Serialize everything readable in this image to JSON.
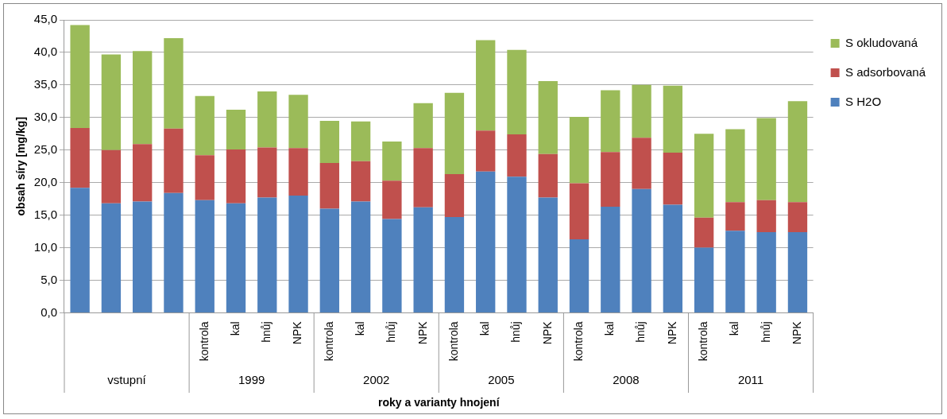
{
  "chart_data": {
    "type": "bar",
    "stacked": true,
    "ylabel": "obsah síry [mg/kg]",
    "xlabel": "roky a varianty hnojení",
    "categories": [
      null,
      null,
      null,
      null,
      "kontrola",
      "kal",
      "hnůj",
      "NPK",
      "kontrola",
      "kal",
      "hnůj",
      "NPK",
      "kontrola",
      "kal",
      "hnůj",
      "NPK",
      "kontrola",
      "kal",
      "hnůj",
      "NPK",
      "kontrola",
      "kal",
      "hnůj",
      "NPK"
    ],
    "series": [
      {
        "name": "S H2O",
        "color": "#4f81bd",
        "values": [
          19.2,
          16.8,
          17.1,
          18.4,
          17.3,
          16.8,
          17.7,
          18.0,
          16.0,
          17.1,
          14.4,
          16.2,
          14.7,
          21.7,
          20.9,
          17.7,
          11.3,
          16.3,
          19.0,
          16.6,
          10.0,
          12.6,
          12.4,
          12.4
        ]
      },
      {
        "name": "S adsorbovaná",
        "color": "#c0504d",
        "values": [
          9.2,
          8.2,
          8.8,
          9.9,
          6.9,
          8.3,
          7.7,
          7.3,
          7.0,
          6.2,
          5.9,
          9.1,
          6.6,
          6.3,
          6.5,
          6.7,
          8.6,
          8.4,
          7.9,
          8.0,
          4.6,
          4.4,
          4.9,
          4.6
        ]
      },
      {
        "name": "S okludovaná",
        "color": "#9bbb59",
        "values": [
          15.8,
          14.7,
          14.3,
          13.9,
          9.1,
          6.1,
          8.6,
          8.2,
          6.5,
          6.1,
          6.0,
          6.9,
          12.5,
          13.9,
          13.0,
          11.2,
          10.2,
          9.5,
          8.1,
          10.3,
          12.9,
          11.2,
          12.6,
          15.5
        ]
      }
    ],
    "ylim": [
      0,
      45
    ],
    "yticks": [
      {
        "value": 0,
        "label": "0,0"
      },
      {
        "value": 5,
        "label": "5,0"
      },
      {
        "value": 10,
        "label": "10,0"
      },
      {
        "value": 15,
        "label": "15,0"
      },
      {
        "value": 20,
        "label": "20,0"
      },
      {
        "value": 25,
        "label": "25,0"
      },
      {
        "value": 30,
        "label": "30,0"
      },
      {
        "value": 35,
        "label": "35,0"
      },
      {
        "value": 40,
        "label": "40,0"
      },
      {
        "value": 45,
        "label": "45,0"
      }
    ],
    "grid": "y",
    "legend": "top right",
    "annotations": [
      "vstupní",
      "1999",
      "2002",
      "2005",
      "2008",
      "2011"
    ]
  }
}
